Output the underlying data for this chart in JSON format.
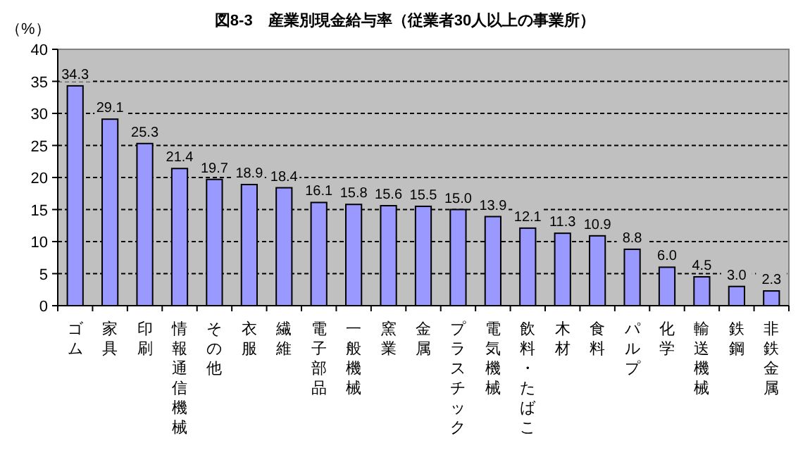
{
  "chart_data": {
    "type": "bar",
    "title": "図8-3　産業別現金給与率（従業者30人以上の事業所）",
    "ylabel": "（%）",
    "categories": [
      "ゴム",
      "家具",
      "印刷",
      "情報通信機械",
      "その他",
      "衣服",
      "繊維",
      "電子部品",
      "一般機械",
      "窯業",
      "金属",
      "プラスチック",
      "電気機械",
      "飲料・たばこ",
      "木材",
      "食料",
      "パルプ",
      "化学",
      "輸送機械",
      "鉄鋼",
      "非鉄金属"
    ],
    "values": [
      34.3,
      29.1,
      25.3,
      21.4,
      19.7,
      18.9,
      18.4,
      16.1,
      15.8,
      15.6,
      15.5,
      15.0,
      13.9,
      12.1,
      11.3,
      10.9,
      8.8,
      6.0,
      4.5,
      3.0,
      2.3
    ],
    "value_labels": [
      "34.3",
      "29.1",
      "25.3",
      "21.4",
      "19.7",
      "18.9",
      "18.4",
      "16.1",
      "15.8",
      "15.6",
      "15.5",
      "15.0",
      "13.9",
      "12.1",
      "11.3",
      "10.9",
      "8.8",
      "6.0",
      "4.5",
      "3.0",
      "2.3"
    ],
    "color": "#9999ff",
    "ylim": [
      0,
      40
    ],
    "yticks": [
      0,
      5,
      10,
      15,
      20,
      25,
      30,
      35,
      40
    ],
    "grid": "y"
  }
}
